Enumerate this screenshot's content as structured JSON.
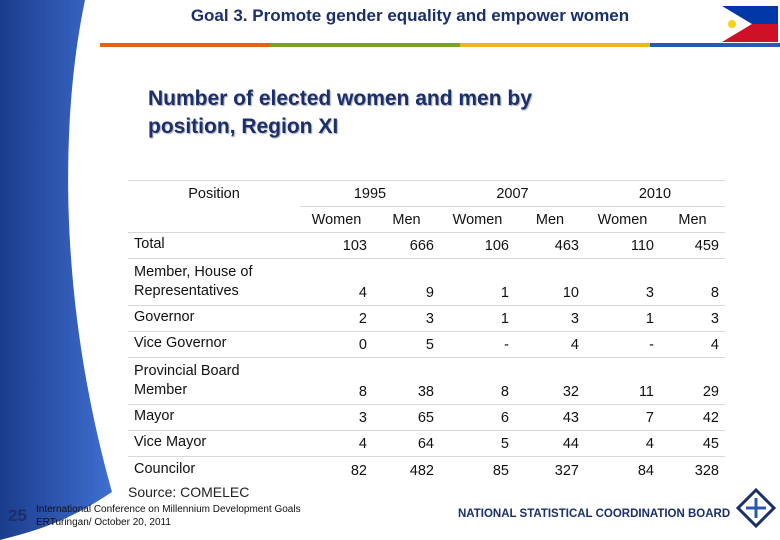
{
  "header": {
    "title": "Goal 3. Promote gender equality and empower women"
  },
  "subtitle": [
    "Number of elected women and men by",
    "position, Region XI"
  ],
  "table": {
    "position_header": "Position",
    "years": [
      "1995",
      "2007",
      "2010"
    ],
    "sub_headers": [
      "Women",
      "Men",
      "Women",
      "Men",
      "Women",
      "Men"
    ],
    "rows": [
      [
        "Total",
        103,
        666,
        106,
        463,
        110,
        459
      ],
      [
        "Member, House of Representatives",
        4,
        9,
        1,
        10,
        3,
        8
      ],
      [
        "Governor",
        2,
        3,
        1,
        3,
        1,
        3
      ],
      [
        "Vice Governor",
        0,
        5,
        "-",
        4,
        "-",
        4
      ],
      [
        "Provincial Board Member",
        8,
        38,
        8,
        32,
        11,
        29
      ],
      [
        "Mayor",
        3,
        65,
        6,
        43,
        7,
        42
      ],
      [
        "Vice Mayor",
        4,
        64,
        5,
        44,
        4,
        45
      ],
      [
        "Councilor",
        82,
        482,
        85,
        327,
        84,
        328
      ]
    ]
  },
  "source": "Source: COMELEC",
  "footer": {
    "page": "25",
    "conference": [
      "International Conference on Millennium Development Goals",
      "ERTuringan/ October 20, 2011"
    ],
    "org": "NATIONAL STATISTICAL COORDINATION BOARD"
  }
}
